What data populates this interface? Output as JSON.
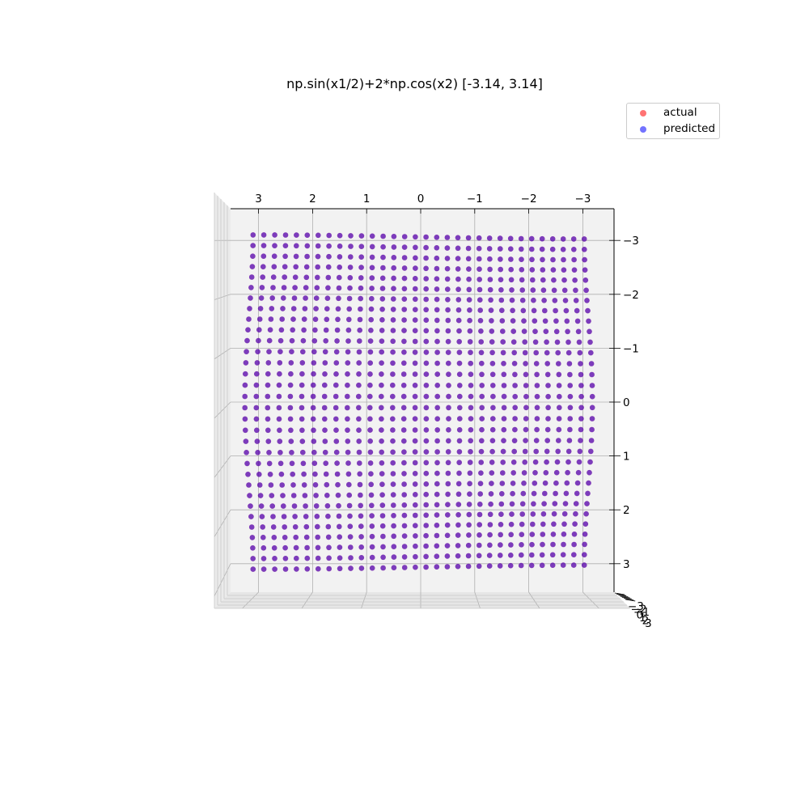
{
  "chart_data": {
    "type": "scatter",
    "subtype": "3d-scatter",
    "title": "np.sin(x1/2)+2*np.cos(x2) [-3.14, 3.14]",
    "xlabel": "",
    "ylabel": "",
    "zlabel": "",
    "x_ticks": [
      "3",
      "2",
      "1",
      "0",
      "−1",
      "−2",
      "−3"
    ],
    "y_ticks": [
      "−3",
      "−2",
      "−1",
      "0",
      "1",
      "2",
      "3"
    ],
    "z_ticks": [
      "−3",
      "−2",
      "−1",
      "0",
      "1",
      "2",
      "3"
    ],
    "xlim": [
      3.5,
      -3.5
    ],
    "ylim": [
      -3.5,
      3.5
    ],
    "grid": true,
    "view": "top-down",
    "legend": {
      "placement": "top-right",
      "entries": [
        {
          "label": "actual",
          "color": "#ff0000"
        },
        {
          "label": "predicted",
          "color": "#0000ff"
        }
      ]
    },
    "x1_range": [
      -3.14,
      3.14
    ],
    "x2_range": [
      -3.14,
      3.14
    ],
    "grid_points_per_axis": 32,
    "series": [
      {
        "name": "actual",
        "color": "#ff0000",
        "alpha": 0.5
      },
      {
        "name": "predicted",
        "color": "#0000ff",
        "alpha": 0.5
      }
    ]
  }
}
